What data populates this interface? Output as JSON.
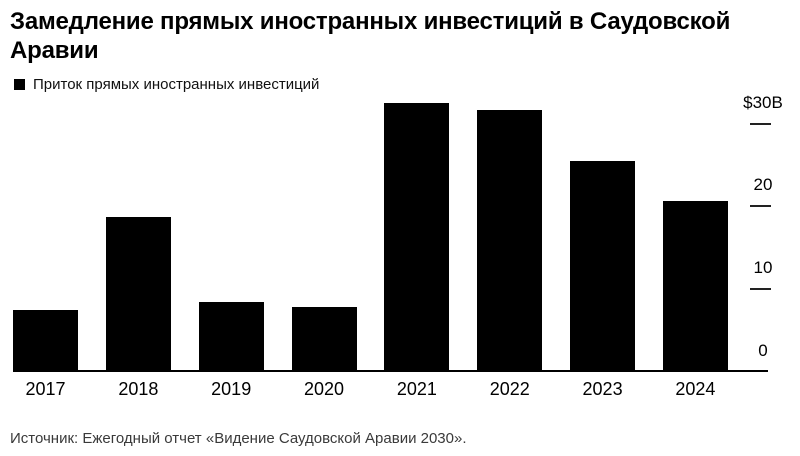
{
  "title_lines": [
    "Замедление прямых иностранных инвестиций в Саудовской",
    "Аравии"
  ],
  "legend": {
    "label": "Приток прямых иностранных инвестиций",
    "swatch_color": "#000000"
  },
  "source": "Источник: Ежегодный отчет «Видение Саудовской Аравии 2030».",
  "colors": {
    "bar": "#000000",
    "background": "#ffffff",
    "axis_line": "#000000",
    "tick_dash": "#222222",
    "source_text": "#3a3a3a"
  },
  "chart_data": {
    "type": "bar",
    "title": "Замедление прямых иностранных инвестиций в Саудовской Аравии",
    "categories": [
      "2017",
      "2018",
      "2019",
      "2020",
      "2021",
      "2022",
      "2023",
      "2024"
    ],
    "series": [
      {
        "name": "Приток прямых иностранных инвестиций",
        "values": [
          7.5,
          18.7,
          8.5,
          7.9,
          32.5,
          31.6,
          25.5,
          20.7
        ]
      }
    ],
    "xlabel": "",
    "ylabel": "",
    "ylim": [
      0,
      33.5
    ],
    "y_axis": {
      "side": "right",
      "ticks": [
        {
          "value": 0,
          "label": "0"
        },
        {
          "value": 10,
          "label": "10"
        },
        {
          "value": 20,
          "label": "20"
        },
        {
          "value": 30,
          "label": "$30B"
        }
      ]
    },
    "grid": false,
    "legend_position": "top-left",
    "bar_color": "#000000"
  }
}
